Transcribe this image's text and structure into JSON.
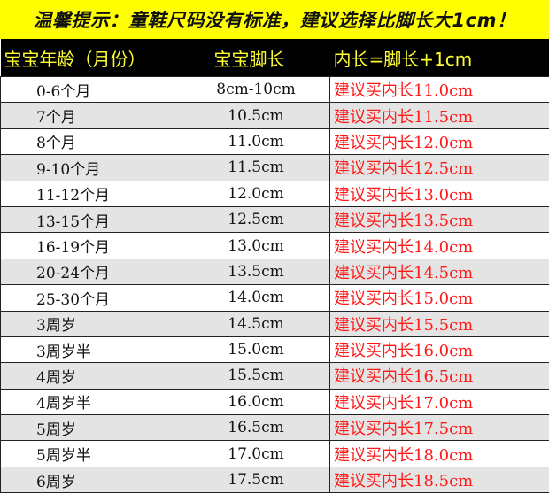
{
  "banner": "温馨提示：童鞋尺码没有标准，建议选择比脚长大1cm！",
  "headers": [
    "宝宝年龄（月份）",
    "宝宝脚长",
    "内长=脚长+1cm"
  ],
  "rows": [
    [
      "0-6个月",
      "8cm-10cm",
      "建议买内长11.0cm"
    ],
    [
      "7个月",
      "10.5cm",
      "建议买内长11.5cm"
    ],
    [
      "8个月",
      "11.0cm",
      "建议买内长12.0cm"
    ],
    [
      "9-10个月",
      "11.5cm",
      "建议买内长12.5cm"
    ],
    [
      "11-12个月",
      "12.0cm",
      "建议买内长13.0cm"
    ],
    [
      "13-15个月",
      "12.5cm",
      "建议买内长13.5cm"
    ],
    [
      "16-19个月",
      "13.0cm",
      "建议买内长14.0cm"
    ],
    [
      "20-24个月",
      "13.5cm",
      "建议买内长14.5cm"
    ],
    [
      "25-30个月",
      "14.0cm",
      "建议买内长15.0cm"
    ],
    [
      "3周岁",
      "14.5cm",
      "建议买内长15.5cm"
    ],
    [
      "3周岁半",
      "15.0cm",
      "建议买内长16.0cm"
    ],
    [
      "4周岁",
      "15.5cm",
      "建议买内长16.5cm"
    ],
    [
      "4周岁半",
      "16.0cm",
      "建议买内长17.0cm"
    ],
    [
      "5周岁",
      "16.5cm",
      "建议买内长17.5cm"
    ],
    [
      "5周岁半",
      "17.0cm",
      "建议买内长18.0cm"
    ],
    [
      "6周岁",
      "17.5cm",
      "建议买内长18.5cm"
    ]
  ],
  "colors": {
    "banner": "#ffff00",
    "header_bg": "#000000",
    "header_text": "#ffff33",
    "recommend_text": "#ff1a1a"
  }
}
